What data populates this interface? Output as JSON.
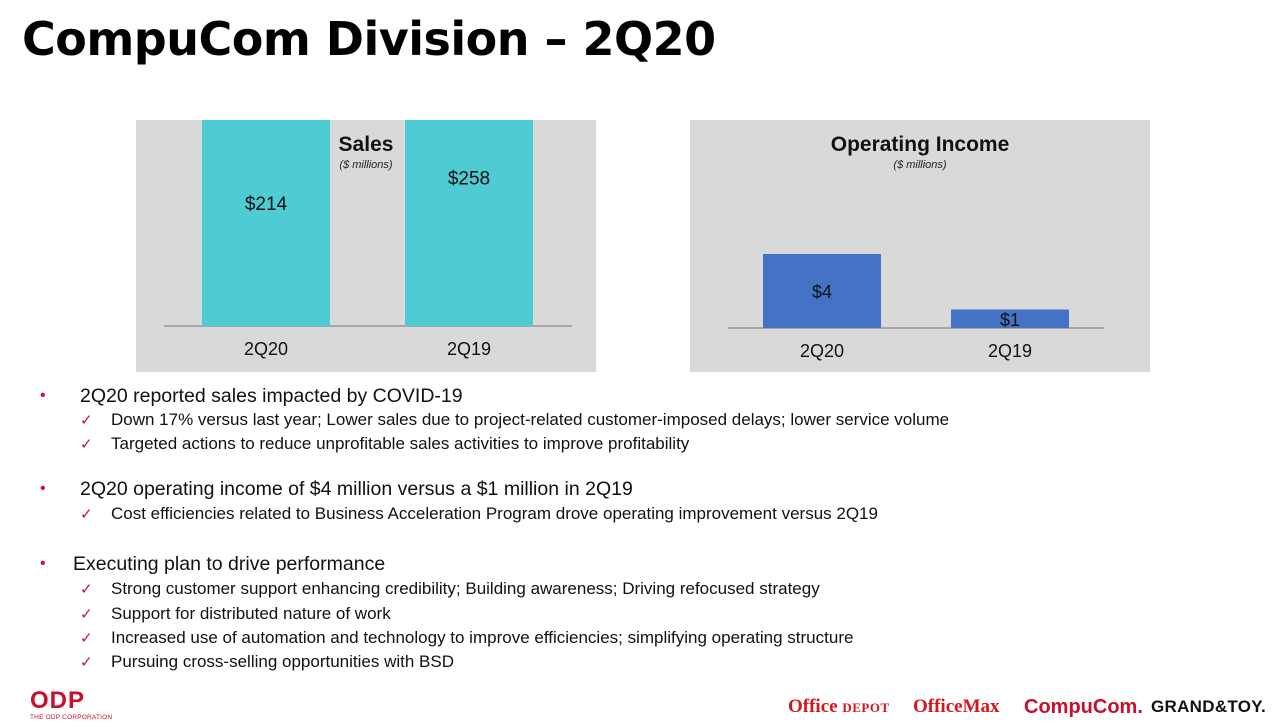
{
  "slide": {
    "title": "CompuCom Division – 2Q20"
  },
  "chart_data": [
    {
      "type": "bar",
      "title": "Sales",
      "subtitle": "($ millions)",
      "categories": [
        "2Q20",
        "2Q19"
      ],
      "values": [
        214,
        258
      ],
      "value_labels": [
        "$214",
        "$258"
      ],
      "bar_color": "#4ecbd3",
      "ylim": [
        0,
        400
      ],
      "grid": false
    },
    {
      "type": "bar",
      "title": "Operating Income",
      "subtitle": "($ millions)",
      "categories": [
        "2Q20",
        "2Q19"
      ],
      "values": [
        4,
        1
      ],
      "value_labels": [
        "$4",
        "$1"
      ],
      "bar_color": "#4472c4",
      "ylim": [
        0,
        10
      ],
      "grid": false
    }
  ],
  "bullets": [
    {
      "text": "2Q20 reported sales impacted by COVID-19",
      "subs": [
        "Down 17% versus last year; Lower sales due to project-related customer-imposed delays; lower service volume",
        "Targeted actions to reduce unprofitable sales activities to improve profitability"
      ]
    },
    {
      "text": "2Q20 operating income of $4 million versus a $1 million in 2Q19",
      "subs": [
        "Cost efficiencies related to Business Acceleration Program drove operating improvement versus 2Q19"
      ]
    },
    {
      "text": "Executing plan to drive performance",
      "subs": [
        "Strong customer support enhancing credibility; Building awareness; Driving refocused strategy",
        "Support for distributed nature of work",
        "Increased use of automation and technology to improve efficiencies; simplifying operating structure",
        "Pursuing cross-selling opportunities with BSD"
      ]
    }
  ],
  "icons": {
    "bullet": "•",
    "check": "✓"
  },
  "footer": {
    "odp_logo": "ODP",
    "odp_tagline": "THE ODP CORPORATION",
    "brands": {
      "office_depot_a": "Office ",
      "office_depot_b": "DEPOT",
      "officemax": "OfficeMax",
      "compucom": "CompuCom.",
      "grand_toy": "GRAND&TOY."
    }
  },
  "colors": {
    "accent_red": "#c8102e",
    "sales_bar": "#4ecbd3",
    "oi_bar": "#4472c4",
    "panel_bg": "#d9d9d9"
  }
}
